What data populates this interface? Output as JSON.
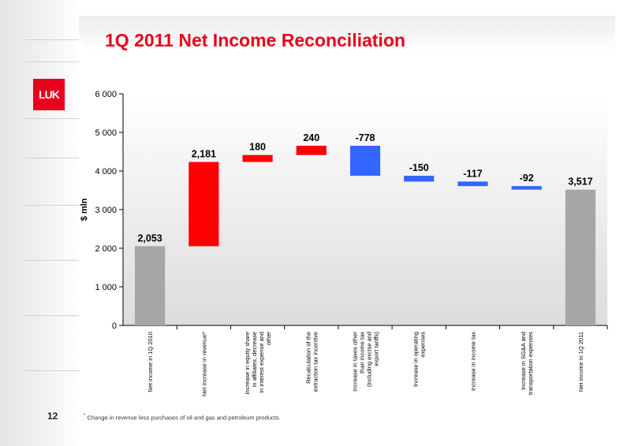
{
  "slide": {
    "title": "1Q 2011 Net Income Reconciliation",
    "logo_text": "LUK",
    "page_number": "12",
    "footnote_mark": "*",
    "footnote": "Change in revenue less purchases of oil and gas and petroleum products."
  },
  "colors": {
    "increase": "#ff0000",
    "decrease": "#3366ff",
    "total": "#a6a6a6",
    "title": "#e8001c"
  },
  "chart_data": {
    "type": "bar",
    "subtype": "waterfall",
    "ylabel": "$ mln",
    "ylim": [
      0,
      6000
    ],
    "yticks": [
      0,
      1000,
      2000,
      3000,
      4000,
      5000,
      6000
    ],
    "ytick_labels": [
      "0",
      "1 000",
      "2 000",
      "3 000",
      "4 000",
      "5 000",
      "6 000"
    ],
    "grid": false,
    "legend": "none",
    "bars": [
      {
        "category": "Net income in 1Q 2010",
        "kind": "total",
        "start": 0,
        "end": 2053,
        "label": "2,053"
      },
      {
        "category": "Net increase in revenue*",
        "kind": "increase",
        "start": 2053,
        "end": 4234,
        "label": "2,181"
      },
      {
        "category": "Increase in equity share in affiliates, decrease in interest expense and other",
        "kind": "increase",
        "start": 4234,
        "end": 4414,
        "label": "180"
      },
      {
        "category": "Recalculation of the extraction tax incentive",
        "kind": "increase",
        "start": 4414,
        "end": 4654,
        "label": "240"
      },
      {
        "category": "Increase in taxes other than income tax (including excise and export tariffs)",
        "kind": "decrease",
        "start": 4654,
        "end": 3876,
        "label": "-778"
      },
      {
        "category": "Increase in operating expenses",
        "kind": "decrease",
        "start": 3876,
        "end": 3726,
        "label": "-150"
      },
      {
        "category": "Increase in income tax",
        "kind": "decrease",
        "start": 3726,
        "end": 3609,
        "label": "-117"
      },
      {
        "category": "Increase in SG&A and transportation expenses",
        "kind": "decrease",
        "start": 3609,
        "end": 3517,
        "label": "-92"
      },
      {
        "category": "Net income in 1Q 2011",
        "kind": "total",
        "start": 0,
        "end": 3517,
        "label": "3,517"
      }
    ]
  }
}
